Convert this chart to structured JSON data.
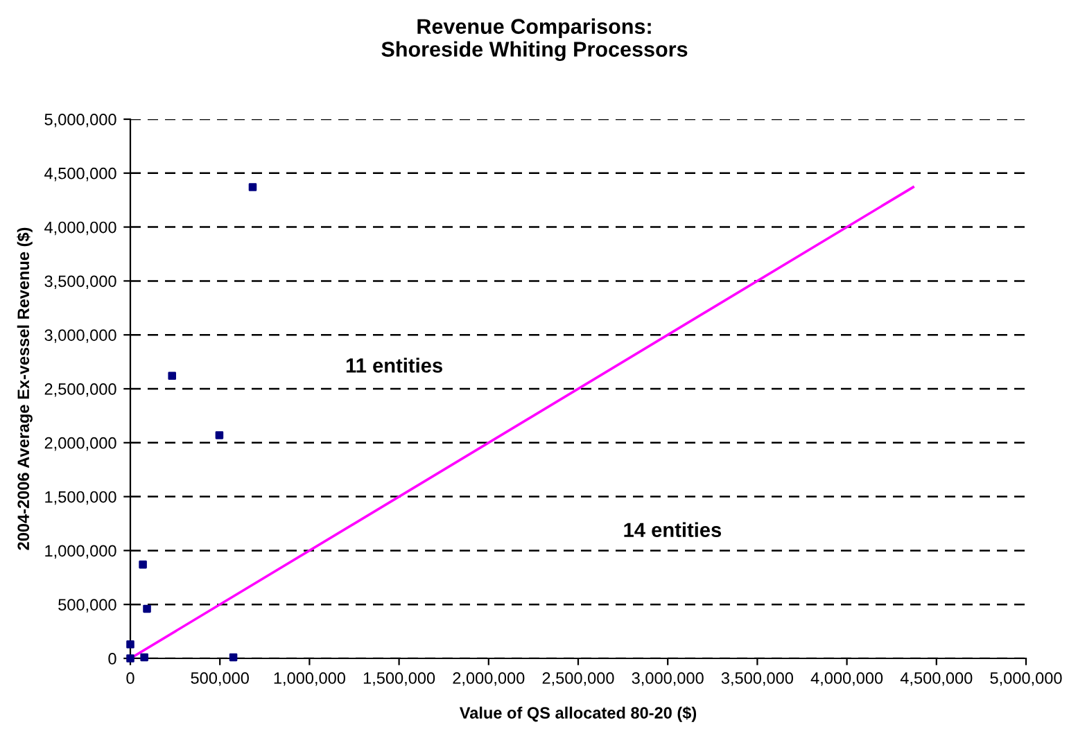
{
  "chart_data": {
    "type": "scatter",
    "title": "Revenue Comparisons:\nShoreside Whiting Processors",
    "xlabel": "Value of QS allocated 80-20 ($)",
    "ylabel": "2004-2006 Average Ex-vessel Revenue ($)",
    "series": [
      {
        "color": "#000080",
        "marker": "square",
        "x": [
          683000,
          233000,
          497000,
          70000,
          93000,
          575000,
          78000,
          0,
          0
        ],
        "values": [
          4370000,
          2620000,
          2070000,
          870000,
          460000,
          10000,
          10000,
          130000,
          0
        ]
      },
      {
        "type": "line",
        "color": "#ff00ff",
        "marker": "none",
        "line_style": "solid",
        "x": [
          0,
          4370000
        ],
        "values": [
          0,
          4370000
        ]
      }
    ],
    "annotations": [
      "11 entities",
      "14 entities"
    ],
    "xlim": [
      0,
      5000000
    ],
    "ylim": [
      0,
      5000000
    ],
    "xticks": [
      0,
      {
        "value": 500000,
        "label": "500,000"
      },
      {
        "value": 1000000,
        "label": "1,000,000"
      },
      {
        "value": 1500000,
        "label": "1,500,000"
      },
      {
        "value": 2000000,
        "label": "2,000,000"
      },
      {
        "value": 2500000,
        "label": "2,500,000"
      },
      {
        "value": 3000000,
        "label": "3,000,000"
      },
      {
        "value": 3500000,
        "label": "3,500,000"
      },
      {
        "value": 4000000,
        "label": "4,000,000"
      },
      {
        "value": 4500000,
        "label": "4,500,000"
      },
      {
        "value": 5000000,
        "label": "5,000,000"
      }
    ],
    "yticks": [
      0,
      {
        "value": 500000,
        "label": "500,000"
      },
      {
        "value": 1000000,
        "label": "1,000,000"
      },
      {
        "value": 1500000,
        "label": "1,500,000"
      },
      {
        "value": 2000000,
        "label": "2,000,000"
      },
      {
        "value": 2500000,
        "label": "2,500,000"
      },
      {
        "value": 3000000,
        "label": "3,000,000"
      },
      {
        "value": 3500000,
        "label": "3,500,000"
      },
      {
        "value": 4000000,
        "label": "4,000,000"
      },
      {
        "value": 4500000,
        "label": "4,500,000"
      },
      {
        "value": 5000000,
        "label": "5,000,000"
      }
    ],
    "grid": "y",
    "legend": false
  }
}
